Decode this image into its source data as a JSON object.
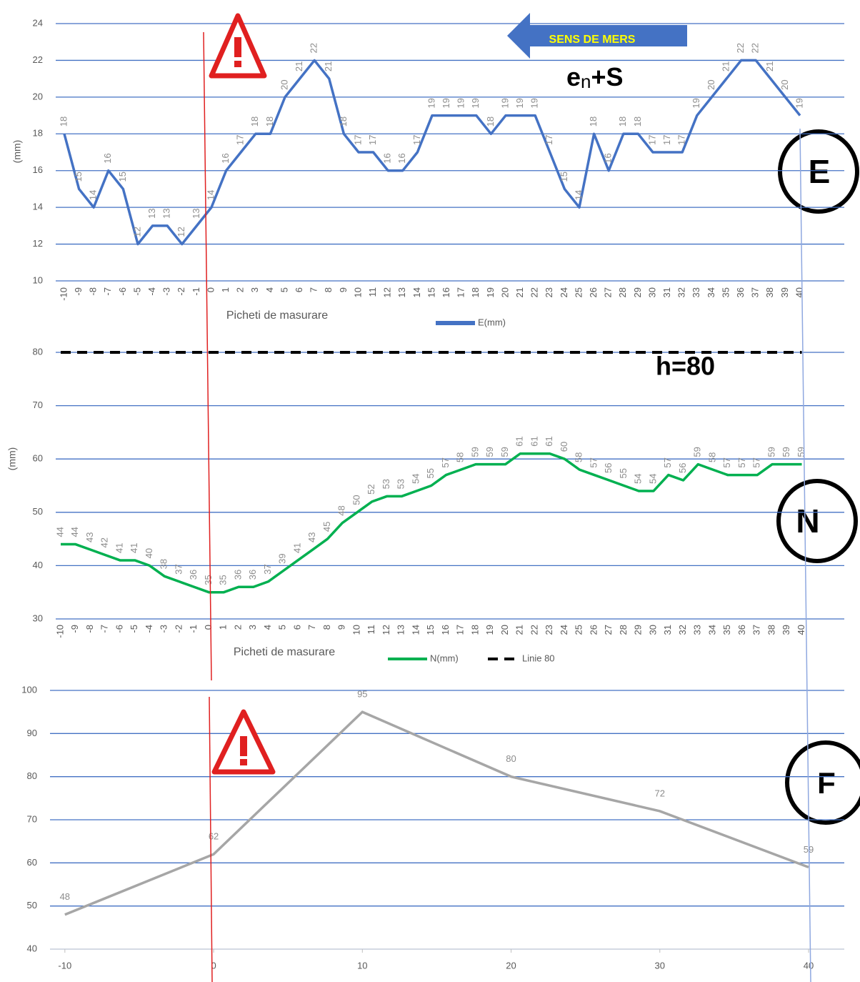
{
  "chart_data": [
    {
      "type": "line",
      "y_label": "(mm)",
      "x_label": "Picheti de masurare",
      "grid": true,
      "legend": "bottom",
      "annotations": [
        "SENS DE MERS",
        "e",
        "n",
        "+S",
        "E"
      ],
      "categories": [
        -10,
        -9,
        -8,
        -7,
        -6,
        -5,
        -4,
        -3,
        -2,
        -1,
        0,
        1,
        2,
        3,
        4,
        5,
        6,
        7,
        8,
        9,
        10,
        11,
        12,
        13,
        14,
        15,
        16,
        17,
        18,
        19,
        20,
        21,
        22,
        23,
        24,
        25,
        26,
        27,
        28,
        29,
        30,
        31,
        32,
        33,
        34,
        35,
        36,
        37,
        38,
        39,
        40
      ],
      "ylim": [
        10,
        24
      ],
      "yticks": [
        10,
        12,
        14,
        16,
        18,
        20,
        22,
        24
      ],
      "series": [
        {
          "name": "E(mm)",
          "color": "#4472c4",
          "style": "solid",
          "data_labels": true,
          "values": [
            18,
            15,
            14,
            16,
            15,
            12,
            13,
            13,
            12,
            13,
            14,
            16,
            17,
            18,
            18,
            20,
            21,
            22,
            21,
            18,
            17,
            17,
            16,
            16,
            17,
            19,
            19,
            19,
            19,
            18,
            19,
            19,
            19,
            17,
            15,
            14,
            18,
            16,
            18,
            18,
            17,
            17,
            17,
            19,
            20,
            21,
            22,
            22,
            21,
            20,
            19
          ]
        }
      ]
    },
    {
      "type": "line",
      "y_label": "(mm)",
      "x_label": "Picheti de masurare",
      "grid": true,
      "legend": "bottom",
      "annotations": [
        "h=80",
        "N"
      ],
      "categories": [
        -10,
        -9,
        -8,
        -7,
        -6,
        -5,
        -4,
        -3,
        -2,
        -1,
        0,
        1,
        2,
        3,
        4,
        5,
        6,
        7,
        8,
        9,
        10,
        11,
        12,
        13,
        14,
        15,
        16,
        17,
        18,
        19,
        20,
        21,
        22,
        23,
        24,
        25,
        26,
        27,
        28,
        29,
        30,
        31,
        32,
        33,
        34,
        35,
        36,
        37,
        38,
        39,
        40
      ],
      "ylim": [
        30,
        80
      ],
      "yticks": [
        30,
        40,
        50,
        60,
        70,
        80
      ],
      "series": [
        {
          "name": "N(mm)",
          "color": "#00b050",
          "style": "solid",
          "data_labels": true,
          "values": [
            44,
            44,
            43,
            42,
            41,
            41,
            40,
            38,
            37,
            36,
            35,
            35,
            36,
            36,
            37,
            39,
            41,
            43,
            45,
            48,
            50,
            52,
            53,
            53,
            54,
            55,
            57,
            58,
            59,
            59,
            59,
            61,
            61,
            61,
            60,
            58,
            57,
            56,
            55,
            54,
            54,
            57,
            56,
            59,
            58,
            57,
            57,
            57,
            59,
            59,
            59
          ]
        },
        {
          "name": "Linie 80",
          "color": "#000000",
          "style": "dashed",
          "data_labels": false,
          "values": [
            80,
            80,
            80,
            80,
            80,
            80,
            80,
            80,
            80,
            80,
            80,
            80,
            80,
            80,
            80,
            80,
            80,
            80,
            80,
            80,
            80,
            80,
            80,
            80,
            80,
            80,
            80,
            80,
            80,
            80,
            80,
            80,
            80,
            80,
            80,
            80,
            80,
            80,
            80,
            80,
            80,
            80,
            80,
            80,
            80,
            80,
            80,
            80,
            80,
            80,
            80
          ]
        }
      ]
    },
    {
      "type": "xyline",
      "grid": true,
      "annotations": [
        "F"
      ],
      "x": [
        -10,
        0,
        10,
        20,
        30,
        40
      ],
      "xlim": [
        -11,
        42.4
      ],
      "xticks": [
        -10,
        0,
        10,
        20,
        30,
        40
      ],
      "ylim": [
        40,
        100
      ],
      "yticks": [
        40,
        50,
        60,
        70,
        80,
        90,
        100
      ],
      "series": [
        {
          "name": "F",
          "color": "#a6a6a6",
          "style": "solid",
          "data_labels": true,
          "values": [
            48,
            62,
            95,
            80,
            72,
            59
          ]
        }
      ]
    }
  ]
}
